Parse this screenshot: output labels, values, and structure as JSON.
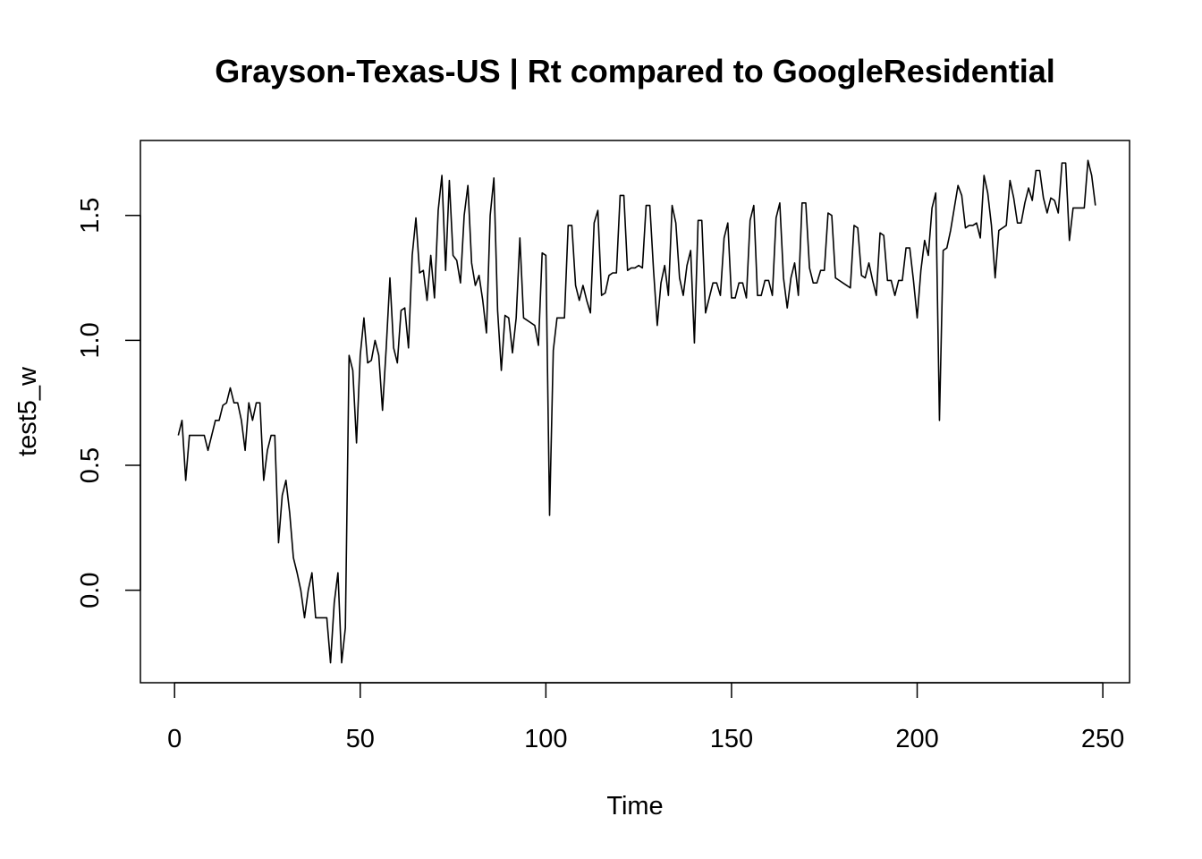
{
  "chart_data": {
    "type": "line",
    "title": "Grayson-Texas-US | Rt compared to GoogleResidential",
    "xlabel": "Time",
    "ylabel": "test5_w",
    "xlim": [
      -9.2,
      257.2
    ],
    "ylim": [
      -0.37,
      1.8
    ],
    "x_ticks": [
      "0",
      "50",
      "100",
      "150",
      "200",
      "250"
    ],
    "y_ticks": [
      "0.0",
      "0.5",
      "1.0",
      "1.5"
    ],
    "grid": false,
    "line_color": "#000000",
    "series": [
      {
        "x_start": 1,
        "values": [
          0.62,
          0.68,
          0.44,
          0.62,
          0.62,
          0.62,
          0.62,
          0.62,
          0.56,
          0.62,
          0.68,
          0.68,
          0.74,
          0.75,
          0.81,
          0.75,
          0.75,
          0.68,
          0.56,
          0.75,
          0.68,
          0.75,
          0.75,
          0.44,
          0.56,
          0.62,
          0.62,
          0.19,
          0.38,
          0.44,
          0.31,
          0.13,
          0.07,
          0.0,
          -0.11,
          0.0,
          0.07,
          -0.11,
          -0.11,
          -0.11,
          -0.11,
          -0.29,
          -0.05,
          0.07,
          -0.29,
          -0.15,
          0.94,
          0.88,
          0.59,
          0.94,
          1.09,
          0.91,
          0.92,
          1.0,
          0.94,
          0.72,
          0.97,
          1.25,
          0.97,
          0.91,
          1.12,
          1.13,
          0.97,
          1.34,
          1.49,
          1.27,
          1.28,
          1.16,
          1.34,
          1.17,
          1.52,
          1.66,
          1.28,
          1.64,
          1.34,
          1.32,
          1.23,
          1.5,
          1.62,
          1.31,
          1.22,
          1.26,
          1.16,
          1.03,
          1.5,
          1.65,
          1.12,
          0.88,
          1.1,
          1.09,
          0.95,
          1.09,
          1.41,
          1.09,
          1.08,
          1.07,
          1.06,
          0.98,
          1.35,
          1.34,
          0.3,
          0.96,
          1.09,
          1.09,
          1.09,
          1.46,
          1.46,
          1.22,
          1.16,
          1.22,
          1.16,
          1.11,
          1.47,
          1.52,
          1.18,
          1.19,
          1.26,
          1.27,
          1.27,
          1.58,
          1.58,
          1.28,
          1.29,
          1.29,
          1.3,
          1.29,
          1.54,
          1.54,
          1.28,
          1.06,
          1.23,
          1.3,
          1.18,
          1.54,
          1.47,
          1.25,
          1.18,
          1.3,
          1.36,
          0.99,
          1.48,
          1.48,
          1.11,
          1.17,
          1.23,
          1.23,
          1.18,
          1.41,
          1.47,
          1.17,
          1.17,
          1.23,
          1.23,
          1.17,
          1.48,
          1.54,
          1.18,
          1.18,
          1.24,
          1.24,
          1.18,
          1.49,
          1.55,
          1.25,
          1.13,
          1.25,
          1.31,
          1.18,
          1.55,
          1.55,
          1.29,
          1.23,
          1.23,
          1.28,
          1.28,
          1.51,
          1.5,
          1.25,
          1.24,
          1.23,
          1.22,
          1.21,
          1.46,
          1.45,
          1.26,
          1.25,
          1.31,
          1.24,
          1.18,
          1.43,
          1.42,
          1.24,
          1.24,
          1.18,
          1.24,
          1.24,
          1.37,
          1.37,
          1.24,
          1.09,
          1.28,
          1.4,
          1.34,
          1.53,
          1.59,
          0.68,
          1.36,
          1.37,
          1.44,
          1.53,
          1.62,
          1.58,
          1.45,
          1.46,
          1.46,
          1.47,
          1.41,
          1.66,
          1.59,
          1.46,
          1.25,
          1.44,
          1.45,
          1.46,
          1.64,
          1.57,
          1.47,
          1.47,
          1.55,
          1.61,
          1.56,
          1.68,
          1.68,
          1.57,
          1.51,
          1.57,
          1.56,
          1.51,
          1.71,
          1.71,
          1.4,
          1.53,
          1.53,
          1.53,
          1.53,
          1.72,
          1.66,
          1.54
        ]
      }
    ]
  }
}
